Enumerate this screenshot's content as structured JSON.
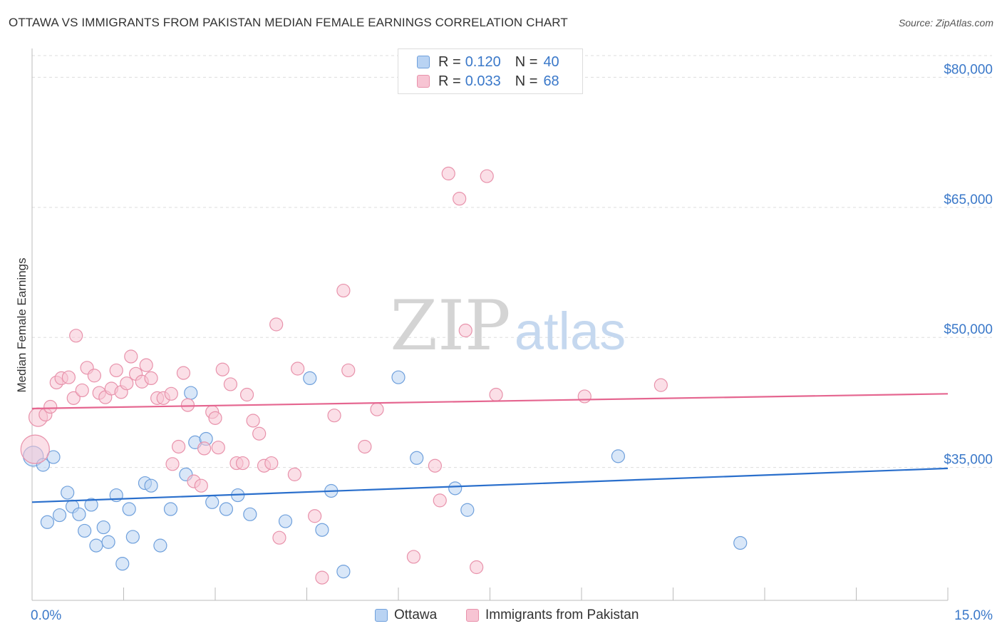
{
  "header": {
    "title": "OTTAWA VS IMMIGRANTS FROM PAKISTAN MEDIAN FEMALE EARNINGS CORRELATION CHART",
    "source": "Source: ZipAtlas.com"
  },
  "watermark": {
    "zip": "ZIP",
    "atlas": "atlas"
  },
  "legend": {
    "rows": [
      {
        "r_label": "R =",
        "r_value": "0.120",
        "n_label": "N =",
        "n_value": "40"
      },
      {
        "r_label": "R =",
        "r_value": "0.033",
        "n_label": "N =",
        "n_value": "68"
      }
    ]
  },
  "colors": {
    "ottawa_fill": "#b9d3f3",
    "ottawa_stroke": "#6fa0dc",
    "ottawa_line": "#2a6fcc",
    "pakistan_fill": "#f7c4d3",
    "pakistan_stroke": "#e892ab",
    "pakistan_line": "#e56690",
    "tick_label": "#3a78c9",
    "grid": "#dddddd"
  },
  "chart_data": {
    "type": "scatter",
    "title": "OTTAWA VS IMMIGRANTS FROM PAKISTAN MEDIAN FEMALE EARNINGS CORRELATION CHART",
    "xlabel": "",
    "ylabel": "Median Female Earnings",
    "xlim": [
      0,
      15
    ],
    "ylim": [
      20500,
      82500
    ],
    "x_tick_labels": [
      "0.0%",
      "15.0%"
    ],
    "y_ticks": [
      35000,
      50000,
      65000,
      80000
    ],
    "y_tick_labels": [
      "$35,000",
      "$50,000",
      "$65,000",
      "$80,000"
    ],
    "grid": true,
    "legend_position": "bottom",
    "series": [
      {
        "name": "Ottawa",
        "r": 0.12,
        "n": 40,
        "trend": {
          "x": [
            0,
            15
          ],
          "y": [
            31000,
            34900
          ]
        },
        "points": [
          [
            0.02,
            36300,
            14
          ],
          [
            0.18,
            35300,
            9
          ],
          [
            0.35,
            36200,
            9
          ],
          [
            0.25,
            28700,
            9
          ],
          [
            0.45,
            29500,
            9
          ],
          [
            0.58,
            32100,
            9
          ],
          [
            0.66,
            30500,
            9
          ],
          [
            0.77,
            29600,
            9
          ],
          [
            0.86,
            27700,
            9
          ],
          [
            0.97,
            30700,
            9
          ],
          [
            1.05,
            26000,
            9
          ],
          [
            1.17,
            28100,
            9
          ],
          [
            1.25,
            26400,
            9
          ],
          [
            1.38,
            31800,
            9
          ],
          [
            1.48,
            23900,
            9
          ],
          [
            1.59,
            30200,
            9
          ],
          [
            1.65,
            27000,
            9
          ],
          [
            1.85,
            33200,
            9
          ],
          [
            1.95,
            32900,
            9
          ],
          [
            2.1,
            26000,
            9
          ],
          [
            2.27,
            30200,
            9
          ],
          [
            2.52,
            34200,
            9
          ],
          [
            2.6,
            43600,
            9
          ],
          [
            2.67,
            37900,
            9
          ],
          [
            2.85,
            38300,
            9
          ],
          [
            2.95,
            31000,
            9
          ],
          [
            3.18,
            30200,
            9
          ],
          [
            3.37,
            31800,
            9
          ],
          [
            3.57,
            29600,
            9
          ],
          [
            4.15,
            28800,
            9
          ],
          [
            4.55,
            45300,
            9
          ],
          [
            4.75,
            27800,
            9
          ],
          [
            4.9,
            32300,
            9
          ],
          [
            5.1,
            23000,
            9
          ],
          [
            6.0,
            45400,
            9
          ],
          [
            6.3,
            36100,
            9
          ],
          [
            6.93,
            32600,
            9
          ],
          [
            7.13,
            30100,
            9
          ],
          [
            9.6,
            36300,
            9
          ],
          [
            11.6,
            26300,
            9
          ]
        ]
      },
      {
        "name": "Immigrants from Pakistan",
        "r": 0.033,
        "n": 68,
        "trend": {
          "x": [
            0,
            15
          ],
          "y": [
            41800,
            43500
          ]
        },
        "points": [
          [
            0.05,
            37100,
            20
          ],
          [
            0.1,
            40800,
            13
          ],
          [
            0.22,
            41100,
            9
          ],
          [
            0.3,
            42000,
            9
          ],
          [
            0.4,
            44800,
            9
          ],
          [
            0.48,
            45300,
            9
          ],
          [
            0.6,
            45400,
            9
          ],
          [
            0.68,
            43000,
            9
          ],
          [
            0.72,
            50200,
            9
          ],
          [
            0.82,
            43900,
            9
          ],
          [
            0.9,
            46500,
            9
          ],
          [
            1.02,
            45600,
            9
          ],
          [
            1.1,
            43600,
            9
          ],
          [
            1.2,
            43100,
            9
          ],
          [
            1.3,
            44100,
            9
          ],
          [
            1.38,
            46200,
            9
          ],
          [
            1.46,
            43700,
            9
          ],
          [
            1.55,
            44700,
            9
          ],
          [
            1.62,
            47800,
            9
          ],
          [
            1.7,
            45800,
            9
          ],
          [
            1.8,
            44900,
            9
          ],
          [
            1.87,
            46800,
            9
          ],
          [
            1.95,
            45300,
            9
          ],
          [
            2.05,
            43000,
            9
          ],
          [
            2.15,
            43000,
            9
          ],
          [
            2.28,
            43500,
            9
          ],
          [
            2.3,
            35400,
            9
          ],
          [
            2.4,
            37400,
            9
          ],
          [
            2.48,
            45900,
            9
          ],
          [
            2.55,
            42200,
            9
          ],
          [
            2.65,
            33400,
            9
          ],
          [
            2.77,
            32900,
            9
          ],
          [
            2.82,
            37200,
            9
          ],
          [
            2.95,
            41400,
            9
          ],
          [
            3.0,
            40700,
            9
          ],
          [
            3.05,
            37300,
            9
          ],
          [
            3.12,
            46300,
            9
          ],
          [
            3.25,
            44600,
            9
          ],
          [
            3.35,
            35500,
            9
          ],
          [
            3.45,
            35500,
            9
          ],
          [
            3.52,
            43400,
            9
          ],
          [
            3.62,
            40400,
            9
          ],
          [
            3.72,
            38900,
            9
          ],
          [
            3.8,
            35200,
            9
          ],
          [
            3.92,
            35500,
            9
          ],
          [
            4.0,
            51500,
            9
          ],
          [
            4.05,
            26900,
            9
          ],
          [
            4.3,
            34200,
            9
          ],
          [
            4.35,
            46400,
            9
          ],
          [
            4.63,
            29400,
            9
          ],
          [
            4.75,
            22300,
            9
          ],
          [
            4.95,
            41000,
            9
          ],
          [
            5.1,
            55400,
            9
          ],
          [
            5.18,
            46200,
            9
          ],
          [
            5.45,
            37400,
            9
          ],
          [
            5.65,
            41700,
            9
          ],
          [
            6.25,
            24700,
            9
          ],
          [
            6.6,
            35200,
            9
          ],
          [
            6.68,
            31200,
            9
          ],
          [
            6.82,
            68900,
            9
          ],
          [
            7.0,
            66000,
            9
          ],
          [
            7.1,
            50800,
            9
          ],
          [
            7.28,
            23500,
            9
          ],
          [
            7.45,
            68600,
            9
          ],
          [
            7.6,
            43400,
            9
          ],
          [
            9.05,
            43200,
            9
          ],
          [
            10.3,
            44500,
            9
          ],
          [
            4.65,
            42300,
            0
          ]
        ]
      }
    ]
  },
  "bottom_legend": [
    "Ottawa",
    "Immigrants from Pakistan"
  ]
}
